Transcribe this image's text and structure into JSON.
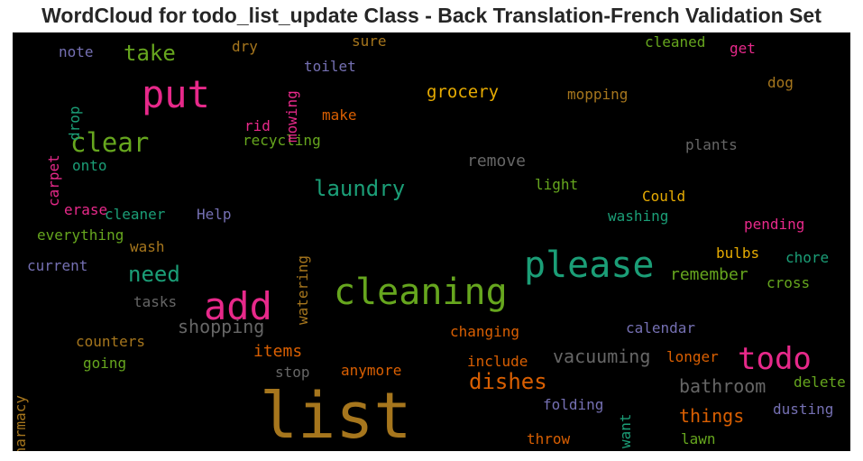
{
  "chart_data": {
    "type": "wordcloud",
    "title": "WordCloud for todo_list_update Class - Back Translation-French Validation Set",
    "background": "#000000",
    "palette": [
      "#1b9e77",
      "#d95f02",
      "#7570b3",
      "#e7298a",
      "#66a61e",
      "#e6ab02",
      "#a6761d",
      "#666666"
    ],
    "words": [
      {
        "text": "list",
        "color": "#a6761d"
      },
      {
        "text": "cleaning",
        "color": "#66a61e"
      },
      {
        "text": "please",
        "color": "#1b9e77"
      },
      {
        "text": "add",
        "color": "#e7298a"
      },
      {
        "text": "put",
        "color": "#e7298a"
      },
      {
        "text": "todo",
        "color": "#e7298a"
      },
      {
        "text": "clear",
        "color": "#66a61e"
      },
      {
        "text": "laundry",
        "color": "#1b9e77"
      },
      {
        "text": "dishes",
        "color": "#d95f02"
      },
      {
        "text": "take",
        "color": "#66a61e"
      },
      {
        "text": "need",
        "color": "#1b9e77"
      },
      {
        "text": "shopping",
        "color": "#666666"
      },
      {
        "text": "vacuuming",
        "color": "#666666"
      },
      {
        "text": "bathroom",
        "color": "#666666"
      },
      {
        "text": "things",
        "color": "#d95f02"
      },
      {
        "text": "grocery",
        "color": "#e6ab02"
      },
      {
        "text": "remove",
        "color": "#666666"
      },
      {
        "text": "remember",
        "color": "#66a61e"
      },
      {
        "text": "items",
        "color": "#d95f02"
      },
      {
        "text": "Could",
        "color": "#e6ab02"
      },
      {
        "text": "mopping",
        "color": "#a6761d"
      },
      {
        "text": "plants",
        "color": "#666666"
      },
      {
        "text": "washing",
        "color": "#1b9e77"
      },
      {
        "text": "light",
        "color": "#66a61e"
      },
      {
        "text": "pending",
        "color": "#e7298a"
      },
      {
        "text": "bulbs",
        "color": "#e6ab02"
      },
      {
        "text": "chore",
        "color": "#1b9e77"
      },
      {
        "text": "cross",
        "color": "#66a61e"
      },
      {
        "text": "changing",
        "color": "#d95f02"
      },
      {
        "text": "calendar",
        "color": "#7570b3"
      },
      {
        "text": "include",
        "color": "#d95f02"
      },
      {
        "text": "longer",
        "color": "#d95f02"
      },
      {
        "text": "anymore",
        "color": "#d95f02"
      },
      {
        "text": "stop",
        "color": "#666666"
      },
      {
        "text": "delete",
        "color": "#66a61e"
      },
      {
        "text": "dusting",
        "color": "#7570b3"
      },
      {
        "text": "folding",
        "color": "#7570b3"
      },
      {
        "text": "want",
        "color": "#1b9e77"
      },
      {
        "text": "throw",
        "color": "#d95f02"
      },
      {
        "text": "lawn",
        "color": "#66a61e"
      },
      {
        "text": "counters",
        "color": "#a6761d"
      },
      {
        "text": "going",
        "color": "#66a61e"
      },
      {
        "text": "pharmacy",
        "color": "#a6761d"
      },
      {
        "text": "tasks",
        "color": "#666666"
      },
      {
        "text": "current",
        "color": "#7570b3"
      },
      {
        "text": "wash",
        "color": "#a6761d"
      },
      {
        "text": "everything",
        "color": "#66a61e"
      },
      {
        "text": "erase",
        "color": "#e7298a"
      },
      {
        "text": "cleaner",
        "color": "#1b9e77"
      },
      {
        "text": "Help",
        "color": "#7570b3"
      },
      {
        "text": "watering",
        "color": "#a6761d"
      },
      {
        "text": "recycling",
        "color": "#66a61e"
      },
      {
        "text": "rid",
        "color": "#e7298a"
      },
      {
        "text": "make",
        "color": "#d95f02"
      },
      {
        "text": "carpet",
        "color": "#e7298a"
      },
      {
        "text": "onto",
        "color": "#1b9e77"
      },
      {
        "text": "drop",
        "color": "#1b9e77"
      },
      {
        "text": "note",
        "color": "#7570b3"
      },
      {
        "text": "dry",
        "color": "#a6761d"
      },
      {
        "text": "mowing",
        "color": "#e7298a"
      },
      {
        "text": "toilet",
        "color": "#7570b3"
      },
      {
        "text": "sure",
        "color": "#a6761d"
      },
      {
        "text": "cleaned",
        "color": "#66a61e"
      },
      {
        "text": "get",
        "color": "#e7298a"
      },
      {
        "text": "dog",
        "color": "#a6761d"
      }
    ]
  }
}
